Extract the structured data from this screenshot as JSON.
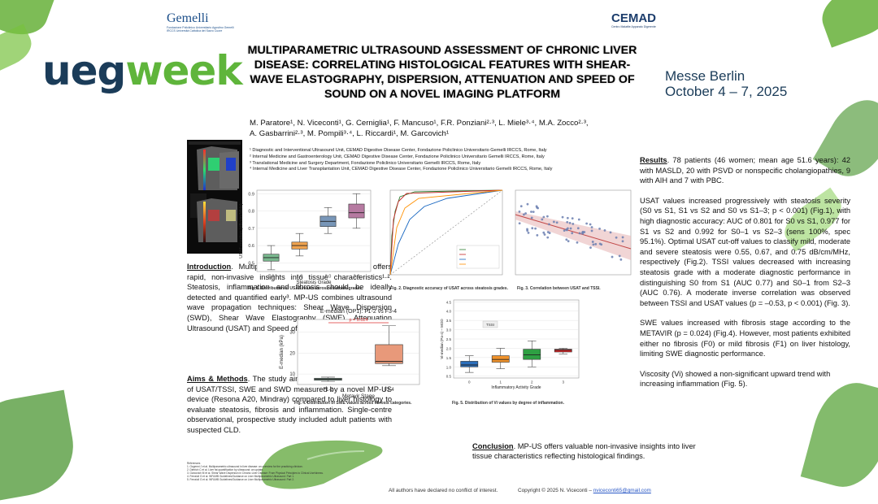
{
  "logos": {
    "ueg_part1": "ueg",
    "ueg_part2": "week",
    "gemelli_name": "Gemelli",
    "gemelli_sub": "Fondazione Policlinico Universitario Agostino Gemelli IRCCS Università Cattolica del Sacro Cuore",
    "cemad_name": "CEMAD",
    "cemad_sub": "Centro Malattie Apparato Digerente"
  },
  "title": "MULTIPARAMETRIC ULTRASOUND ASSESSMENT OF CHRONIC LIVER DISEASE: CORRELATING HISTOLOGICAL FEATURES WITH SHEAR-WAVE ELASTOGRAPHY, DISPERSION, ATTENUATION AND SPEED OF SOUND ON A NOVEL IMAGING PLATFORM",
  "venue": {
    "line1": "Messe Berlin",
    "line2": "October 4 – 7, 2025"
  },
  "authors": {
    "line1": "M. Paratore¹, N. Viceconti¹, G. Cerniglia¹, F. Mancuso¹, F.R. Ponziani²·³, L. Miele³·⁴, M.A. Zocco²·³,",
    "line2": "A. Gasbarrini²·³, M. Pompili³·⁴, L. Riccardi¹, M. Garcovich¹"
  },
  "affiliations": [
    "¹ Diagnostic and Interventional Ultrasound Unit, CEMAD Digestive Disease Center, Fondazione Policlinico Universitario Gemelli IRCCS, Rome, Italy",
    "² Internal Medicine and Gastroenterology Unit, CEMAD Digestive Disease Center, Fondazione Policlinico Universitario Gemelli IRCCS, Rome, Italy",
    "³ Translational Medicine and Surgery Department, Fondazione Policlinico Universitario Gemelli IRCCS, Rome, Italy",
    "⁴ Internal Medicine and Liver Transplantation Unit, CEMAD Digestive Disease Center, Fondazione Policlinico Universitario Gemelli IRCCS, Rome, Italy"
  ],
  "intro": {
    "heading": "Introduction",
    "text": ". Multiparametric Ultrasound (MP-US) offers rapid, non-invasive insights into tissue characteristics¹·². Steatosis, inflammation and fibrosis should be ideally detected and quantified early³. MP-US combines ultrasound wave propagation techniques: Shear Wave Dispersion (SWD), Shear Wave Elastography (SWE), Attenuation Ultrasound (USAT) and Speed of Sound (TSSI)³·⁴."
  },
  "aims": {
    "heading": "Aims & Methods",
    "text": ". The study aimed to assess the accuracy of USAT/TSSI, SWE and SWD measured by a novel MP-US device (Resona A20, Mindray) compared to liver histology to evaluate steatosis, fibrosis and inflammation. Single-centre observational, prospective study included adult patients with suspected CLD."
  },
  "results": {
    "heading": "Results",
    "p1": ". 78 patients (46 women; mean age 51.6 years): 42 with MASLD, 20 with PSVD or nonspecific cholangiopathies, 9 with AIH and 7 with PBC.",
    "p2": "USAT values increased progressively with steatosis severity (S0 vs S1, S1 vs S2 and S0 vs S1–3; p < 0.001) (Fig.1), with high diagnostic accuracy: AUC of 0.801 for S0 vs S1, 0.977 for S1 vs S2 and 0.992 for S0–1 vs S2–3 (sens 100%, spec 95.1%). Optimal USAT cut-off values to classify mild, moderate and severe steatosis were 0.55, 0.67, and 0.75 dB/cm/MHz, respectively (Fig.2). TSSI values decreased with increasing steatosis grade with a moderate diagnostic performance in distinguishing S0 from S1 (AUC 0.77) and S0–1 from S2–3 (AUC 0.76). A moderate inverse correlation was observed between TSSI and USAT values (p = –0.53, p < 0.001) (Fig. 3).",
    "p3": "SWE values increased with fibrosis stage according to the METAVIR (p = 0.024) (Fig.4). However, most patients exhibited either no fibrosis (F0) or mild fibrosis (F1) on liver histology, limiting SWE diagnostic performance.",
    "p4": "Viscosity (Vi) showed a non-significant upward trend with increasing inflammation (Fig. 5)."
  },
  "conclusion": {
    "heading": "Conclusion",
    "text": ". MP-US offers valuable non-invasive insights into liver tissue characteristics reflecting histological findings."
  },
  "references": [
    "References",
    "1. Ozgermi J et al. Multiparametric ultrasound in liver disease: an overview for the practicing clinician.",
    "2. Dietrich C et al. Liver fat quantification by ultrasound: an update.",
    "3. Garcovich M et al. Shear Wave Dispersion in Chronic Liver Disease: From Physical Principles to Clinical Usefulness.",
    "4. Ferraioli G et al. WFUMB Guidelines/Guidance on Liver Multiparametric Ultrasound: Part 1.",
    "5. Ferraioli G et al. WFUMB Guidelines/Guidance on Liver Multiparametric Ultrasound: Part 2."
  ],
  "footer": {
    "disclosure": "All authors have declared no conflict of interest.",
    "copyright": "Copyright © 2025 N. Viceconti –",
    "email": "nviceconti65@gmail.com"
  },
  "figures": {
    "fig1_caption": "Fig. 1. Distribution of USAT values across steatosis grades.",
    "fig2_caption": "Fig. 2. Diagnostic accuracy of USAT across steatosis grades.",
    "fig3_caption": "Fig. 3. Correlation between USAT and TSSI.",
    "fig4_caption": "Fig. 4. Distribution of SWE values across fibrosis categories.",
    "fig5_caption": "Fig. 5. Distribution of Vi values by degree of inflammation.",
    "fig4_title": "E-median (OP1): F1-2 vs F3-4",
    "fig4_pvalue": "p = 0.024",
    "fig5_legend": "TSSI"
  },
  "chart_data": [
    {
      "type": "box",
      "xlabel": "Steatosis Grade",
      "ylabel": "USAT-median (dB/cm/MHz)",
      "categories": [
        "0.0",
        "1.0",
        "2.0",
        "3.0"
      ],
      "yticks": [
        "0.5",
        "0.6",
        "0.7",
        "0.8",
        "0.9"
      ],
      "ylim": [
        0.45,
        0.92
      ],
      "boxes": [
        {
          "min": 0.46,
          "q1": 0.51,
          "median": 0.53,
          "q3": 0.55,
          "max": 0.6,
          "color": "#7ab88f"
        },
        {
          "min": 0.54,
          "q1": 0.58,
          "median": 0.6,
          "q3": 0.62,
          "max": 0.67,
          "color": "#f0a34f"
        },
        {
          "min": 0.67,
          "q1": 0.71,
          "median": 0.74,
          "q3": 0.77,
          "max": 0.82,
          "color": "#7896b8"
        },
        {
          "min": 0.7,
          "q1": 0.76,
          "median": 0.79,
          "q3": 0.84,
          "max": 0.9,
          "color": "#b67aa1"
        }
      ]
    },
    {
      "type": "box",
      "title": "E-median (OP1): F1-2 vs F3-4",
      "xlabel": "Metavir Stage",
      "ylabel": "E-median (kPa)",
      "categories": [
        "F1-2",
        "F3-4"
      ],
      "yticks": [
        "10",
        "20",
        "30"
      ],
      "ylim": [
        5,
        36
      ],
      "boxes": [
        {
          "min": 6.5,
          "q1": 7.0,
          "median": 7.5,
          "q3": 8.0,
          "max": 8.5,
          "color": "#7b9b8d"
        },
        {
          "min": 14,
          "q1": 15,
          "median": 16,
          "q3": 24,
          "max": 33,
          "color": "#e8997a"
        }
      ]
    },
    {
      "type": "box",
      "xlabel": "Inflammatory Activity Grade",
      "ylabel": "Vi-median (Pa·s) – MOD",
      "categories": [
        "0",
        "1",
        "2",
        "3"
      ],
      "yticks": [
        "0.5",
        "1.0",
        "1.5",
        "2.0",
        "2.5",
        "3.0",
        "3.5",
        "4.0",
        "4.5"
      ],
      "ylim": [
        0.4,
        4.6
      ],
      "boxes": [
        {
          "min": 0.7,
          "q1": 1.0,
          "median": 1.1,
          "q3": 1.3,
          "max": 1.6,
          "color": "#2c6fbb"
        },
        {
          "min": 0.9,
          "q1": 1.25,
          "median": 1.4,
          "q3": 1.6,
          "max": 2.0,
          "color": "#f0922b"
        },
        {
          "min": 1.0,
          "q1": 1.4,
          "median": 1.65,
          "q3": 1.95,
          "max": 2.4,
          "color": "#2ea043"
        },
        {
          "min": 1.7,
          "q1": 1.8,
          "median": 1.9,
          "q3": 1.95,
          "max": 2.0,
          "color": "#d62728"
        }
      ]
    }
  ]
}
